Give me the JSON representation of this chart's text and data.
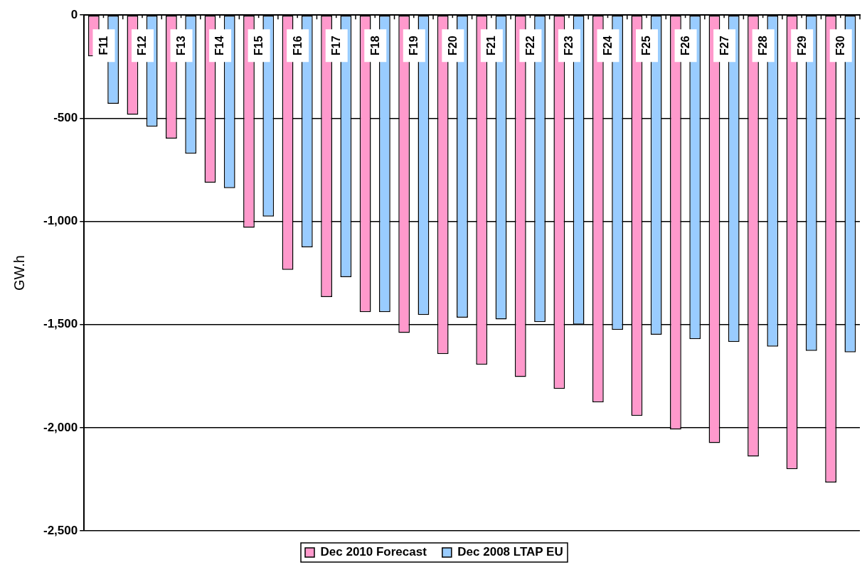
{
  "chart_data": {
    "type": "bar",
    "ylabel": "GW.h",
    "categories": [
      "F11",
      "F12",
      "F13",
      "F14",
      "F15",
      "F16",
      "F17",
      "F18",
      "F19",
      "F20",
      "F21",
      "F22",
      "F23",
      "F24",
      "F25",
      "F26",
      "F27",
      "F28",
      "F29",
      "F30"
    ],
    "series": [
      {
        "name": "Dec 2010 Forecast",
        "color": "#ff99cc",
        "values": [
          -200,
          -483,
          -599,
          -812,
          -1031,
          -1235,
          -1367,
          -1440,
          -1541,
          -1643,
          -1695,
          -1754,
          -1812,
          -1877,
          -1943,
          -2009,
          -2075,
          -2140,
          -2201,
          -2266
        ]
      },
      {
        "name": "Dec 2008 LTAP EU",
        "color": "#99ccff",
        "values": [
          -430,
          -541,
          -672,
          -839,
          -977,
          -1126,
          -1270,
          -1440,
          -1454,
          -1467,
          -1475,
          -1488,
          -1500,
          -1526,
          -1549,
          -1571,
          -1585,
          -1607,
          -1628,
          -1635
        ]
      }
    ],
    "ylim": [
      -2500,
      0
    ],
    "yticks": [
      {
        "value": -2500,
        "label": "-2,500"
      },
      {
        "value": -2000,
        "label": "-2,000"
      },
      {
        "value": -1500,
        "label": "-1,500"
      },
      {
        "value": -1000,
        "label": "-1,000"
      },
      {
        "value": -500,
        "label": "-500"
      },
      0
    ],
    "grid": "y",
    "legend": "bottom"
  }
}
